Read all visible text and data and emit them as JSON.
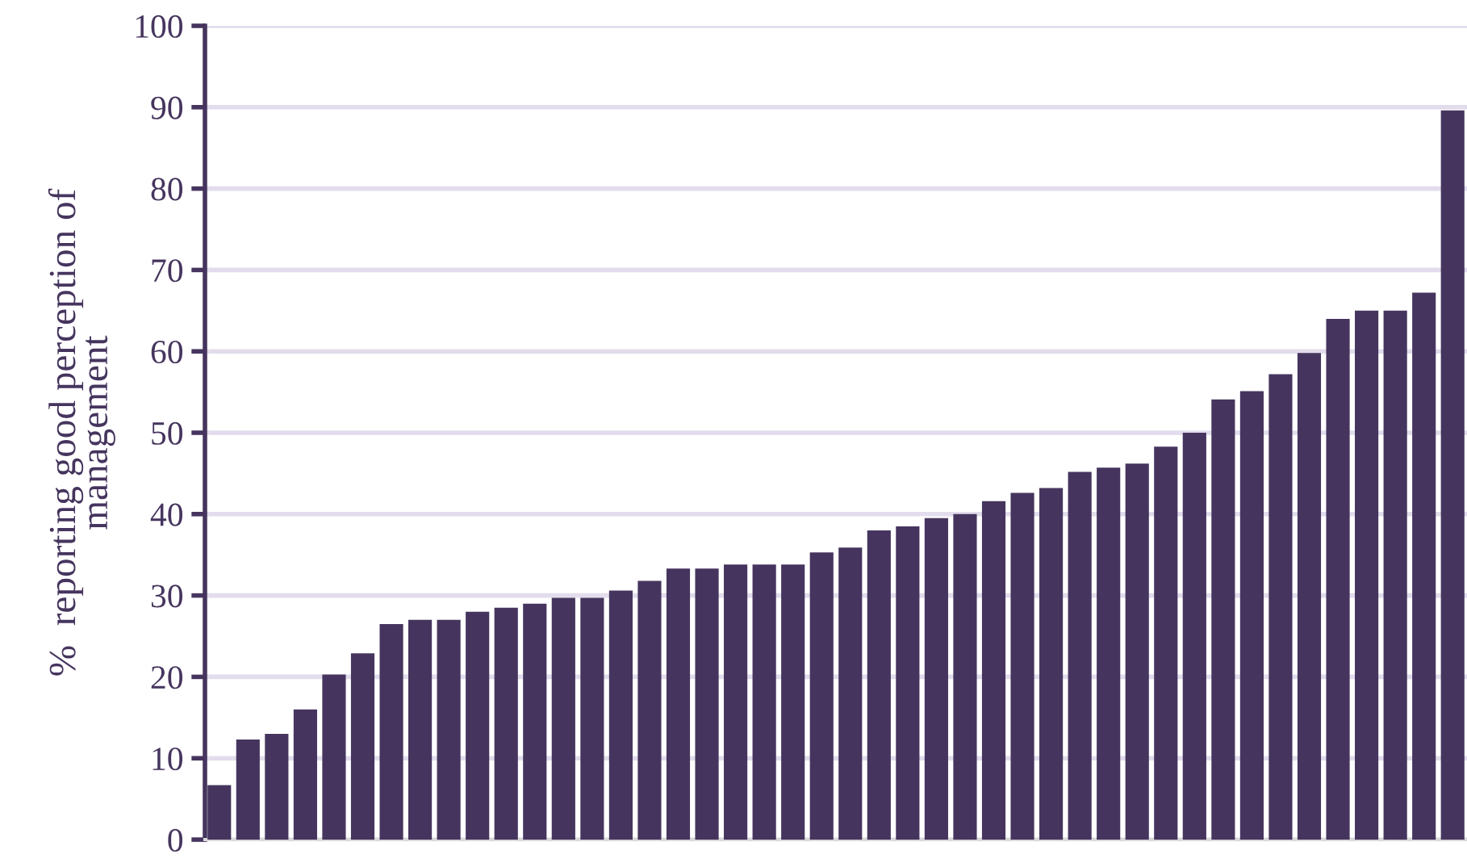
{
  "chart_data": {
    "type": "bar",
    "ylabel": "%  reporting good perception of\nmanagement",
    "categories": [
      null,
      null,
      null,
      null,
      null,
      null,
      null,
      null,
      null,
      null,
      null,
      null,
      null,
      null,
      null,
      null,
      null,
      null,
      null,
      null,
      null,
      null,
      null,
      null,
      null,
      null,
      null,
      null,
      null,
      null,
      null,
      null,
      null,
      null,
      null,
      null,
      null,
      null,
      null,
      null,
      null,
      null,
      null,
      null
    ],
    "values": [
      6.7,
      12.3,
      13,
      16,
      20.3,
      22.9,
      26.5,
      27,
      27,
      28,
      28.5,
      29,
      29.7,
      29.7,
      30.6,
      31.8,
      33.3,
      33.3,
      33.8,
      33.8,
      33.8,
      35.3,
      35.9,
      38,
      38.5,
      39.5,
      40,
      41.6,
      42.6,
      43.2,
      45.2,
      45.7,
      46.2,
      48.3,
      50,
      54.1,
      55.1,
      57.2,
      59.8,
      64,
      65,
      65,
      67.2,
      89.6
    ],
    "color": "#45355e",
    "ylim": [
      0,
      100
    ],
    "yticks": [
      0,
      10,
      20,
      30,
      40,
      50,
      60,
      70,
      80,
      90,
      100
    ],
    "grid": "y",
    "legend": false
  }
}
